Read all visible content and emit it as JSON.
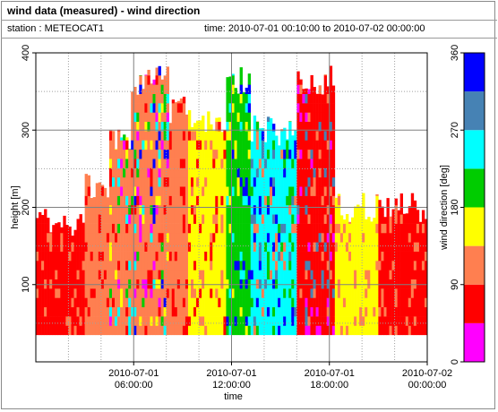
{
  "window": {
    "title": "wind data (measured) - wind direction",
    "station": "station : METEOCAT1",
    "time_range": "time: 2010-07-01 00:10:00 to 2010-07-02 00:00:00"
  },
  "chart_data": {
    "type": "heatmap",
    "xlabel": "time",
    "ylabel": "height [m]",
    "xlim": [
      0,
      1440
    ],
    "ylim": [
      0,
      400
    ],
    "x_ticks": [
      {
        "x": 360,
        "line1": "2010-07-01",
        "line2": "06:00:00"
      },
      {
        "x": 720,
        "line1": "2010-07-01",
        "line2": "12:00:00"
      },
      {
        "x": 1080,
        "line1": "2010-07-01",
        "line2": "18:00:00"
      },
      {
        "x": 1440,
        "line1": "2010-07-02",
        "line2": "00:00:00"
      }
    ],
    "y_ticks": [
      100,
      200,
      300,
      400
    ],
    "grid": true,
    "height_min": 35,
    "column_interval_min": 10,
    "colorbar": {
      "label": "wind direction [deg]",
      "ticks": [
        0,
        90,
        180,
        270,
        360
      ],
      "bins": [
        {
          "from": 0,
          "to": 45,
          "color": "#ff00ff"
        },
        {
          "from": 45,
          "to": 90,
          "color": "#ff0000"
        },
        {
          "from": 90,
          "to": 135,
          "color": "#ff7f50"
        },
        {
          "from": 135,
          "to": 180,
          "color": "#ffff00"
        },
        {
          "from": 180,
          "to": 225,
          "color": "#00cc00"
        },
        {
          "from": 225,
          "to": 270,
          "color": "#00ffff"
        },
        {
          "from": 270,
          "to": 315,
          "color": "#4682b4"
        },
        {
          "from": 315,
          "to": 360,
          "color": "#0000ff"
        }
      ]
    },
    "segments": [
      {
        "from": 0,
        "to": 180,
        "top": 180,
        "direction": "red",
        "mix": [
          "red",
          "red",
          "coral"
        ]
      },
      {
        "from": 180,
        "to": 270,
        "top": 230,
        "direction": "coral",
        "mix": [
          "coral",
          "coral",
          "red"
        ]
      },
      {
        "from": 270,
        "to": 350,
        "top": 295,
        "direction": "coral",
        "mix": [
          "coral",
          "red",
          "red",
          "green",
          "cyan",
          "magenta",
          "yellow"
        ]
      },
      {
        "from": 350,
        "to": 490,
        "top": 365,
        "direction": "coral",
        "mix": [
          "coral",
          "red",
          "red",
          "blue",
          "magenta",
          "cyan",
          "green",
          "yellow"
        ]
      },
      {
        "from": 490,
        "to": 560,
        "top": 325,
        "direction": "coral",
        "mix": [
          "coral",
          "coral",
          "red"
        ]
      },
      {
        "from": 560,
        "to": 700,
        "top": 310,
        "direction": "yellow",
        "mix": [
          "yellow",
          "yellow",
          "coral",
          "red"
        ]
      },
      {
        "from": 700,
        "to": 790,
        "top": 365,
        "direction": "green",
        "mix": [
          "green",
          "cyan",
          "yellow",
          "blue"
        ]
      },
      {
        "from": 790,
        "to": 960,
        "top": 300,
        "direction": "cyan",
        "mix": [
          "cyan",
          "steelblue",
          "green",
          "blue",
          "coral"
        ]
      },
      {
        "from": 960,
        "to": 1100,
        "top": 365,
        "direction": "red",
        "mix": [
          "red",
          "red",
          "coral",
          "coral",
          "magenta",
          "steelblue"
        ]
      },
      {
        "from": 1100,
        "to": 1260,
        "top": 200,
        "direction": "yellow",
        "mix": [
          "yellow",
          "yellow",
          "coral"
        ]
      },
      {
        "from": 1260,
        "to": 1440,
        "top": 200,
        "direction": "red",
        "mix": [
          "red",
          "red",
          "coral"
        ]
      }
    ]
  }
}
